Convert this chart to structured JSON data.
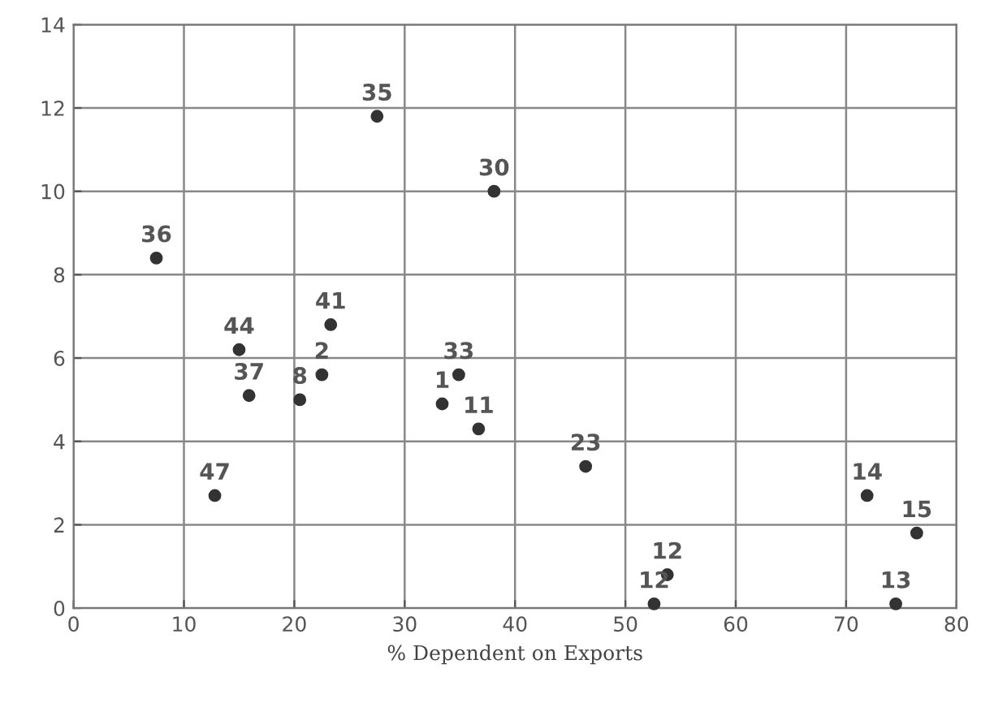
{
  "chart_data": {
    "type": "scatter",
    "xlabel": "% Dependent on Exports",
    "x": [
      7.5,
      27.5,
      38.1,
      15.0,
      23.3,
      22.5,
      15.9,
      20.5,
      34.9,
      33.4,
      36.7,
      12.8,
      46.4,
      71.9,
      76.4,
      53.8,
      74.5,
      52.6
    ],
    "values": [
      8.4,
      11.8,
      10.0,
      6.2,
      6.8,
      5.6,
      5.1,
      5.0,
      5.6,
      4.9,
      4.3,
      2.7,
      3.4,
      2.7,
      1.8,
      0.8,
      0.1,
      0.1
    ],
    "color": "#333333",
    "marker": "circle",
    "annotations": [
      {
        "text": "36",
        "x": 7.5,
        "y": 8.4
      },
      {
        "text": "35",
        "x": 27.5,
        "y": 11.8
      },
      {
        "text": "30",
        "x": 38.1,
        "y": 10.0
      },
      {
        "text": "44",
        "x": 15.0,
        "y": 6.2
      },
      {
        "text": "41",
        "x": 23.3,
        "y": 6.8
      },
      {
        "text": "2",
        "x": 22.5,
        "y": 5.6
      },
      {
        "text": "37",
        "x": 15.9,
        "y": 5.1
      },
      {
        "text": "8",
        "x": 20.5,
        "y": 5.0
      },
      {
        "text": "33",
        "x": 34.9,
        "y": 5.6
      },
      {
        "text": "1",
        "x": 33.4,
        "y": 4.9
      },
      {
        "text": "11",
        "x": 36.7,
        "y": 4.3
      },
      {
        "text": "47",
        "x": 12.8,
        "y": 2.7
      },
      {
        "text": "23",
        "x": 46.4,
        "y": 3.4
      },
      {
        "text": "14",
        "x": 71.9,
        "y": 2.7
      },
      {
        "text": "15",
        "x": 76.4,
        "y": 1.8
      },
      {
        "text": "12",
        "x": 53.8,
        "y": 0.8
      },
      {
        "text": "13",
        "x": 74.5,
        "y": 0.1
      },
      {
        "text": "12",
        "x": 52.6,
        "y": 0.1
      }
    ],
    "xlim": [
      0,
      80
    ],
    "xticks": [
      0,
      10,
      20,
      30,
      40,
      50,
      60,
      70,
      80
    ],
    "ylim": [
      0,
      14
    ],
    "yticks": [
      0,
      2,
      4,
      6,
      8,
      10,
      12,
      14
    ],
    "grid": true
  }
}
